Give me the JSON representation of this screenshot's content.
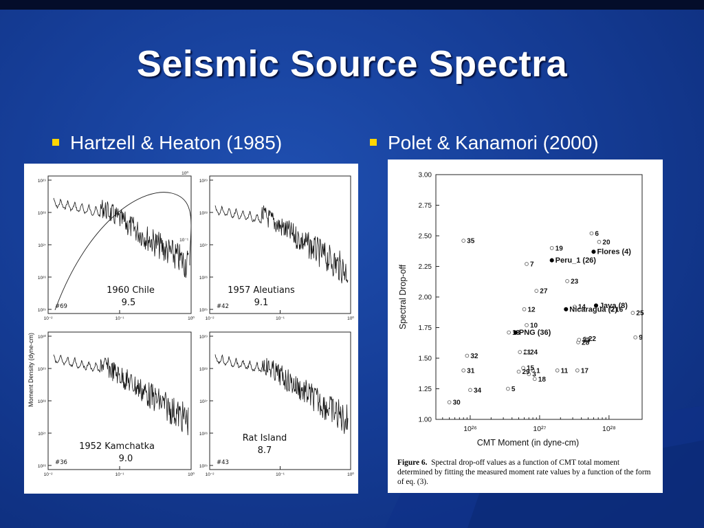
{
  "slide": {
    "title": "Seismic Source Spectra",
    "bullets": [
      "Hartzell & Heaton (1985)",
      "Polet & Kanamori (2000)"
    ]
  },
  "left_figure": {
    "y_axis_label": "Moment Density  (dyne-cm)",
    "panels": [
      {
        "id": "chile",
        "event": "1960 Chile",
        "magnitude": "9.5",
        "number": "#69",
        "y_ticks": [
          "10²⁹",
          "10²⁸",
          "10²⁷",
          "10²⁶",
          "10²⁵"
        ],
        "x_ticks": [
          "10⁻²",
          "10⁻¹",
          "10⁰"
        ],
        "right_ticks": [
          "10⁰",
          "10⁻¹"
        ]
      },
      {
        "id": "aleutians",
        "event": "1957 Aleutians",
        "magnitude": "9.1",
        "number": "#42",
        "y_ticks": [
          "10²⁹",
          "10²⁸",
          "10²⁷",
          "10²⁶",
          "10²⁵"
        ],
        "x_ticks": [
          "10⁻²",
          "10⁻¹",
          "10⁰"
        ]
      },
      {
        "id": "kamchatka",
        "event": "1952  Kamchatka",
        "magnitude": "9.0",
        "number": "#36",
        "y_ticks": [
          "10³⁰",
          "10²⁹",
          "10²⁸",
          "10²⁷",
          "10²⁶"
        ],
        "x_ticks": [
          "10⁻²",
          "10⁻¹",
          "10⁰"
        ]
      },
      {
        "id": "ratisland",
        "event": "Rat Island",
        "magnitude": "8.7",
        "number": "#43",
        "y_ticks": [
          "10²⁹",
          "10²⁸",
          "10²⁷",
          "10²⁶",
          "10²⁵"
        ],
        "x_ticks": [
          "10⁻²",
          "10⁻¹",
          "10⁰"
        ]
      }
    ]
  },
  "chart_data": {
    "type": "scatter",
    "xlabel": "CMT Moment (in dyne-cm)",
    "ylabel": "Spectral Drop-off",
    "x_scale": "log",
    "xlim": [
      3.2e+25,
      3e+28
    ],
    "ylim": [
      1.0,
      3.0
    ],
    "x_ticks": [
      {
        "value": 1e+26,
        "label": "10²⁶"
      },
      {
        "value": 1e+27,
        "label": "10²⁷"
      },
      {
        "value": 1e+28,
        "label": "10²⁸"
      }
    ],
    "y_ticks": [
      "1.00",
      "1.25",
      "1.50",
      "1.75",
      "2.00",
      "2.25",
      "2.50",
      "2.75",
      "3.00"
    ],
    "points": [
      {
        "label": "1",
        "x": 8e+26,
        "y": 1.4,
        "filled": false
      },
      {
        "label": "3",
        "x": 7e+26,
        "y": 1.37,
        "filled": false
      },
      {
        "label": "5",
        "x": 3.5e+26,
        "y": 1.25,
        "filled": false
      },
      {
        "label": "6",
        "x": 5.6e+27,
        "y": 2.52,
        "filled": false
      },
      {
        "label": "7",
        "x": 6.5e+26,
        "y": 2.27,
        "filled": false
      },
      {
        "label": "9",
        "x": 2.4e+28,
        "y": 1.67,
        "filled": false
      },
      {
        "label": "10",
        "x": 6.5e+26,
        "y": 1.77,
        "filled": false
      },
      {
        "label": "11",
        "x": 1.8e+27,
        "y": 1.4,
        "filled": false
      },
      {
        "label": "12",
        "x": 6e+26,
        "y": 1.9,
        "filled": false
      },
      {
        "label": "13",
        "x": 3.6e+26,
        "y": 1.71,
        "filled": false
      },
      {
        "label": "14",
        "x": 3.2e+27,
        "y": 1.92,
        "filled": false
      },
      {
        "label": "15",
        "x": 5.8e+26,
        "y": 1.42,
        "filled": false
      },
      {
        "label": "16",
        "x": 1.1e+28,
        "y": 1.9,
        "filled": false
      },
      {
        "label": "17",
        "x": 3.5e+27,
        "y": 1.4,
        "filled": false
      },
      {
        "label": "18",
        "x": 8.5e+26,
        "y": 1.33,
        "filled": false
      },
      {
        "label": "19",
        "x": 1.5e+27,
        "y": 2.4,
        "filled": false
      },
      {
        "label": "20",
        "x": 7.2e+27,
        "y": 2.45,
        "filled": false
      },
      {
        "label": "21",
        "x": 5.2e+26,
        "y": 1.55,
        "filled": false
      },
      {
        "label": "22",
        "x": 4.5e+27,
        "y": 1.66,
        "filled": false
      },
      {
        "label": "23",
        "x": 2.5e+27,
        "y": 2.13,
        "filled": false
      },
      {
        "label": "24",
        "x": 6.5e+26,
        "y": 1.55,
        "filled": false
      },
      {
        "label": "25",
        "x": 2.2e+28,
        "y": 1.87,
        "filled": false
      },
      {
        "label": "27",
        "x": 9e+26,
        "y": 2.05,
        "filled": false
      },
      {
        "label": "28",
        "x": 3.6e+27,
        "y": 1.63,
        "filled": false
      },
      {
        "label": "29",
        "x": 5e+26,
        "y": 1.39,
        "filled": false
      },
      {
        "label": "30",
        "x": 5e+25,
        "y": 1.14,
        "filled": false
      },
      {
        "label": "31",
        "x": 8e+25,
        "y": 1.4,
        "filled": false
      },
      {
        "label": "32",
        "x": 9e+25,
        "y": 1.52,
        "filled": false
      },
      {
        "label": "33",
        "x": 3.7e+27,
        "y": 1.65,
        "filled": false
      },
      {
        "label": "34",
        "x": 1e+26,
        "y": 1.24,
        "filled": false
      },
      {
        "label": "35",
        "x": 8e+25,
        "y": 2.46,
        "filled": false
      },
      {
        "label": "Flores (4)",
        "x": 6e+27,
        "y": 2.37,
        "filled": true
      },
      {
        "label": "Peru_1 (26)",
        "x": 1.5e+27,
        "y": 2.3,
        "filled": true
      },
      {
        "label": "Java (8)",
        "x": 6.5e+27,
        "y": 1.93,
        "filled": true
      },
      {
        "label": "Nicaragua (2)",
        "x": 2.4e+27,
        "y": 1.9,
        "filled": true
      },
      {
        "label": "PNG (36)",
        "x": 4.5e+26,
        "y": 1.71,
        "filled": true
      }
    ]
  },
  "caption": {
    "label": "Figure 6.",
    "text": "Spectral drop-off values as a function of CMT total moment determined by fitting the measured moment rate values by a function of the form of eq. (3)."
  }
}
